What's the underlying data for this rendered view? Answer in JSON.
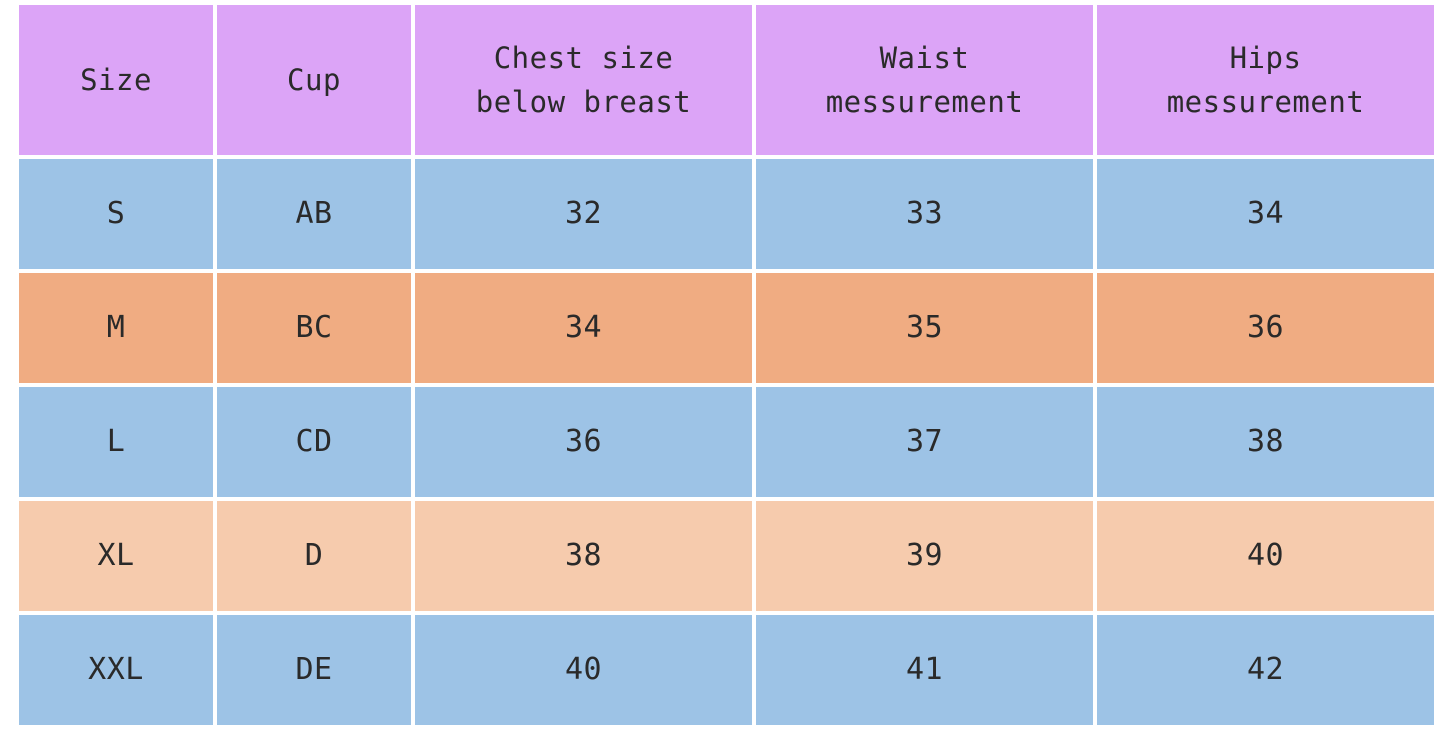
{
  "colors": {
    "header": "#dca4f7",
    "blue_row": "#9dc3e6",
    "orange_row": "#f0ac82",
    "peach_row": "#f6cbad"
  },
  "table": {
    "headers": [
      "Size",
      "Cup",
      "Chest size\nbelow breast",
      "Waist\nmessurement",
      "Hips\nmessurement"
    ],
    "rows": [
      {
        "color": "#9dc3e6",
        "cells": [
          "S",
          "AB",
          "32",
          "33",
          "34"
        ]
      },
      {
        "color": "#f0ac82",
        "cells": [
          "M",
          "BC",
          "34",
          "35",
          "36"
        ]
      },
      {
        "color": "#9dc3e6",
        "cells": [
          "L",
          "CD",
          "36",
          "37",
          "38"
        ]
      },
      {
        "color": "#f6cbad",
        "cells": [
          "XL",
          "D",
          "38",
          "39",
          "40"
        ]
      },
      {
        "color": "#9dc3e6",
        "cells": [
          "XXL",
          "DE",
          "40",
          "41",
          "42"
        ]
      }
    ]
  }
}
